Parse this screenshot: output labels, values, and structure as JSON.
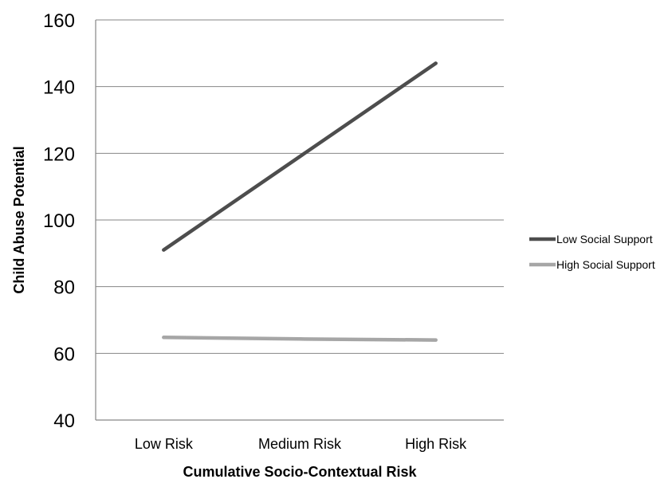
{
  "chart_data": {
    "type": "line",
    "title": "",
    "xlabel": "Cumulative Socio-Contextual Risk",
    "ylabel": "Child Abuse Potential",
    "categories": [
      "Low Risk",
      "Medium Risk",
      "High Risk"
    ],
    "ylim": [
      40,
      160
    ],
    "yticks": [
      40,
      60,
      80,
      100,
      120,
      140,
      160
    ],
    "grid": true,
    "legend_position": "right",
    "series": [
      {
        "name": "Low Social Support",
        "color": "#4d4d4d",
        "values": [
          91,
          119,
          147
        ]
      },
      {
        "name": "High Social Support",
        "color": "#a6a6a6",
        "values": [
          64.8,
          64.3,
          64
        ]
      }
    ]
  }
}
